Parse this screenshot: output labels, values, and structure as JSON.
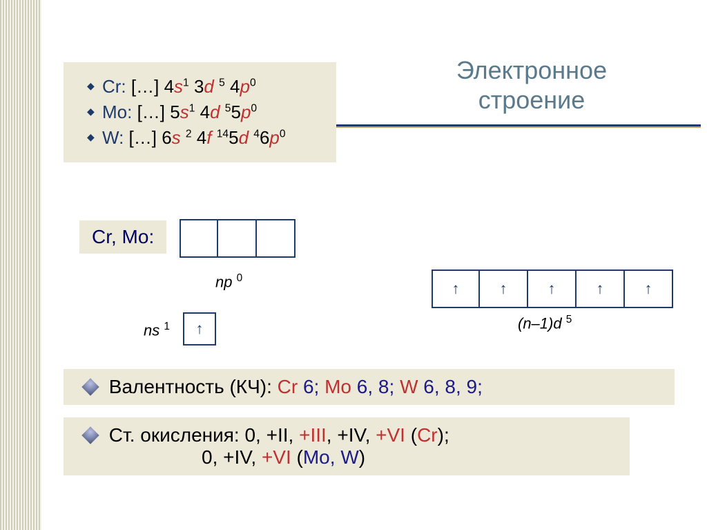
{
  "title": {
    "line1": "Электронное",
    "line2": "строение"
  },
  "configs": [
    {
      "el": "Cr",
      "parts": [
        " […] 4",
        {
          "o": "s"
        },
        {
          "sup": "1"
        },
        " 3",
        {
          "o": "d"
        },
        " ",
        {
          "sup": "5"
        },
        " 4",
        {
          "o": "p"
        },
        {
          "sup": "0"
        }
      ]
    },
    {
      "el": "Mo",
      "parts": [
        " […] 5",
        {
          "o": "s"
        },
        {
          "sup": "1"
        },
        " 4",
        {
          "o": "d"
        },
        " ",
        {
          "sup": "5"
        },
        "5",
        {
          "o": "p"
        },
        {
          "sup": "0"
        }
      ]
    },
    {
      "el": "W",
      "parts": [
        " […] 6",
        {
          "o": "s"
        },
        " ",
        {
          "sup": "2"
        },
        " 4",
        {
          "o": "f"
        },
        " ",
        {
          "sup": "14"
        },
        "5",
        {
          "o": "d"
        },
        " ",
        {
          "sup": "4"
        },
        "6",
        {
          "o": "p"
        },
        {
          "sup": "0"
        }
      ]
    }
  ],
  "crmo_label": "Cr, Mo:",
  "orbitals": {
    "np": {
      "boxes": [
        "",
        "",
        ""
      ],
      "label_pre": "np ",
      "label_sup": "0"
    },
    "ns": {
      "boxes": [
        "↑"
      ],
      "label_pre": "ns ",
      "label_sup": "1"
    },
    "d": {
      "boxes": [
        "↑",
        "↑",
        "↑",
        "↑",
        "↑"
      ],
      "label_pre": "(n–1)d ",
      "label_sup": "5"
    }
  },
  "valence": {
    "label": "Валентность (КЧ):  ",
    "items": [
      {
        "el": "Cr",
        "vals": "  6; "
      },
      {
        "el": "Mo",
        "vals": "  6, 8; "
      },
      {
        "el": "W",
        "vals": "  6, 8, 9;"
      }
    ]
  },
  "oxidation": {
    "label": "Ст. окисления: ",
    "line1": [
      {
        "c": "blk",
        "t": "0, +II, "
      },
      {
        "c": "red",
        "t": "+III"
      },
      {
        "c": "blk",
        "t": ", +IV, "
      },
      {
        "c": "red",
        "t": "+VI"
      },
      {
        "c": "blk",
        "t": " ("
      },
      {
        "c": "red",
        "t": "Cr"
      },
      {
        "c": "blk",
        "t": ");"
      }
    ],
    "line2": [
      {
        "c": "blk",
        "t": "0, +IV, "
      },
      {
        "c": "red",
        "t": "+VI"
      },
      {
        "c": "blk",
        "t": " ("
      },
      {
        "c": "nav",
        "t": "Mo, W"
      },
      {
        "c": "blk",
        "t": ")"
      }
    ]
  },
  "colors": {
    "beige": "#ece9d8",
    "navy": "#1e3a6b",
    "red": "#c03030",
    "title": "#5a7a8c"
  }
}
